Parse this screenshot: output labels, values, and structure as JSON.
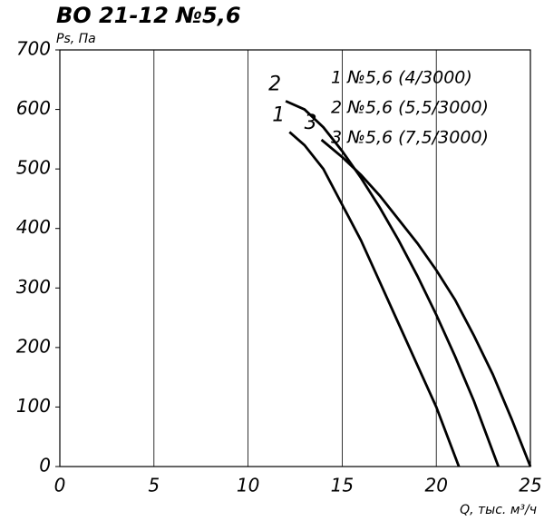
{
  "chart_data": {
    "type": "line",
    "title": "ВО 21-12 №5,6",
    "ylabel": "Ps, Па",
    "xlabel": "Q, тыс. м³/ч",
    "xlim": [
      0,
      25
    ],
    "xticks": [
      0,
      5,
      10,
      15,
      20,
      25
    ],
    "ylim": [
      0,
      700
    ],
    "yticks": [
      0,
      100,
      200,
      300,
      400,
      500,
      600,
      700
    ],
    "grid": "x",
    "series": [
      {
        "name": "1 №5,6 (4/3000)",
        "tag": "1",
        "color": "#000000",
        "x": [
          12.2,
          13,
          14,
          15,
          16,
          17,
          18,
          19,
          20,
          21.2
        ],
        "values": [
          562,
          540,
          500,
          440,
          380,
          310,
          240,
          170,
          100,
          0
        ]
      },
      {
        "name": "2 №5,6 (5,5/3000)",
        "tag": "2",
        "color": "#000000",
        "x": [
          12,
          13,
          14,
          15,
          16,
          17,
          18,
          19,
          20,
          21,
          22,
          23.3
        ],
        "values": [
          614,
          600,
          570,
          530,
          485,
          435,
          380,
          320,
          255,
          185,
          110,
          0
        ]
      },
      {
        "name": "3 №5,6 (7,5/3000)",
        "tag": "3",
        "color": "#000000",
        "x": [
          13.9,
          15,
          16,
          17,
          18,
          19,
          20,
          21,
          22,
          23,
          24,
          25
        ],
        "values": [
          549,
          520,
          490,
          455,
          415,
          375,
          330,
          280,
          220,
          155,
          80,
          0
        ]
      }
    ]
  }
}
